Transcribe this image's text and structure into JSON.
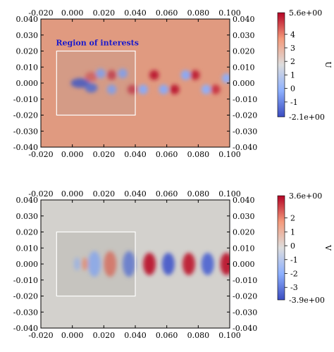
{
  "chart_data": [
    {
      "type": "heatmap",
      "field": "U",
      "colorbar_label": "U",
      "colorbar_min_label": "-2.1e+00",
      "colorbar_max_label": "5.6e+00",
      "colorbar_ticks": [
        4,
        3,
        2,
        1,
        0,
        -1
      ],
      "vmin": -2.1,
      "vmax": 5.6,
      "background_value": 3.1,
      "xlim": [
        -0.02,
        0.1
      ],
      "ylim": [
        -0.04,
        0.04
      ],
      "x_ticks": [
        "-0.020",
        "0.000",
        "0.020",
        "0.040",
        "0.060",
        "0.080",
        "0.100"
      ],
      "y_ticks": [
        "0.040",
        "0.030",
        "0.020",
        "0.010",
        "0.000",
        "-0.010",
        "-0.020",
        "-0.030",
        "-0.040"
      ],
      "x_tick_values": [
        -0.02,
        0,
        0.02,
        0.04,
        0.06,
        0.08,
        0.1
      ],
      "y_tick_values": [
        0.04,
        0.03,
        0.02,
        0.01,
        0,
        -0.01,
        -0.02,
        -0.03,
        -0.04
      ],
      "annotation": "Region of interests",
      "region_of_interest": {
        "x": [
          -0.01,
          0.04
        ],
        "y": [
          -0.02,
          0.02
        ]
      },
      "wake_features": [
        {
          "x": 0.005,
          "y": 0.0,
          "sx": 0.006,
          "sy": 0.003,
          "value": -2.0
        },
        {
          "x": 0.012,
          "y": -0.003,
          "sx": 0.004,
          "sy": 0.003,
          "value": -1.6
        },
        {
          "x": 0.012,
          "y": 0.004,
          "sx": 0.004,
          "sy": 0.003,
          "value": 4.5
        },
        {
          "x": 0.018,
          "y": 0.006,
          "sx": 0.003,
          "sy": 0.003,
          "value": -0.5
        },
        {
          "x": 0.025,
          "y": 0.005,
          "sx": 0.003,
          "sy": 0.003,
          "value": 5.0
        },
        {
          "x": 0.025,
          "y": -0.004,
          "sx": 0.003,
          "sy": 0.003,
          "value": -0.5
        },
        {
          "x": 0.032,
          "y": 0.006,
          "sx": 0.003,
          "sy": 0.003,
          "value": -0.5
        },
        {
          "x": 0.038,
          "y": -0.004,
          "sx": 0.003,
          "sy": 0.003,
          "value": 5.0
        },
        {
          "x": 0.045,
          "y": -0.004,
          "sx": 0.003,
          "sy": 0.003,
          "value": -0.3
        },
        {
          "x": 0.052,
          "y": 0.005,
          "sx": 0.003,
          "sy": 0.003,
          "value": 5.4
        },
        {
          "x": 0.058,
          "y": -0.004,
          "sx": 0.003,
          "sy": 0.003,
          "value": -0.3
        },
        {
          "x": 0.065,
          "y": -0.004,
          "sx": 0.003,
          "sy": 0.003,
          "value": 5.4
        },
        {
          "x": 0.072,
          "y": 0.005,
          "sx": 0.003,
          "sy": 0.003,
          "value": -0.3
        },
        {
          "x": 0.078,
          "y": 0.005,
          "sx": 0.003,
          "sy": 0.003,
          "value": 5.3
        },
        {
          "x": 0.085,
          "y": -0.004,
          "sx": 0.003,
          "sy": 0.003,
          "value": -0.2
        },
        {
          "x": 0.091,
          "y": -0.004,
          "sx": 0.003,
          "sy": 0.003,
          "value": 5.0
        },
        {
          "x": 0.098,
          "y": 0.003,
          "sx": 0.003,
          "sy": 0.003,
          "value": -0.2
        }
      ]
    },
    {
      "type": "heatmap",
      "field": "V",
      "colorbar_label": "V",
      "colorbar_min_label": "-3.9e+00",
      "colorbar_max_label": "3.6e+00",
      "colorbar_ticks": [
        2,
        1,
        0,
        -1,
        -2,
        -3
      ],
      "vmin": -3.9,
      "vmax": 3.6,
      "background_value": 0.0,
      "xlim": [
        -0.02,
        0.1
      ],
      "ylim": [
        -0.04,
        0.04
      ],
      "x_ticks": [
        "-0.020",
        "0.000",
        "0.020",
        "0.040",
        "0.060",
        "0.080",
        "0.100"
      ],
      "y_ticks": [
        "0.040",
        "0.030",
        "0.020",
        "0.010",
        "0.000",
        "-0.010",
        "-0.020",
        "-0.030",
        "-0.040"
      ],
      "x_tick_values": [
        -0.02,
        0,
        0.02,
        0.04,
        0.06,
        0.08,
        0.1
      ],
      "y_tick_values": [
        0.04,
        0.03,
        0.02,
        0.01,
        0,
        -0.01,
        -0.02,
        -0.03,
        -0.04
      ],
      "region_of_interest": {
        "x": [
          -0.01,
          0.04
        ],
        "y": [
          -0.02,
          0.02
        ]
      },
      "wake_features": [
        {
          "x": 0.003,
          "y": 0.0,
          "sx": 0.002,
          "sy": 0.004,
          "value": -1.5
        },
        {
          "x": 0.008,
          "y": 0.0,
          "sx": 0.002,
          "sy": 0.004,
          "value": 1.8
        },
        {
          "x": 0.014,
          "y": 0.0,
          "sx": 0.004,
          "sy": 0.008,
          "value": -2.0
        },
        {
          "x": 0.024,
          "y": 0.0,
          "sx": 0.004,
          "sy": 0.008,
          "value": 2.2
        },
        {
          "x": 0.036,
          "y": 0.0,
          "sx": 0.004,
          "sy": 0.008,
          "value": -3.0
        },
        {
          "x": 0.049,
          "y": 0.0,
          "sx": 0.004,
          "sy": 0.007,
          "value": 3.4
        },
        {
          "x": 0.061,
          "y": 0.0,
          "sx": 0.004,
          "sy": 0.007,
          "value": -3.6
        },
        {
          "x": 0.074,
          "y": 0.0,
          "sx": 0.004,
          "sy": 0.007,
          "value": 3.3
        },
        {
          "x": 0.086,
          "y": 0.0,
          "sx": 0.004,
          "sy": 0.007,
          "value": -3.4
        },
        {
          "x": 0.098,
          "y": 0.0,
          "sx": 0.004,
          "sy": 0.007,
          "value": 3.4
        }
      ]
    }
  ]
}
